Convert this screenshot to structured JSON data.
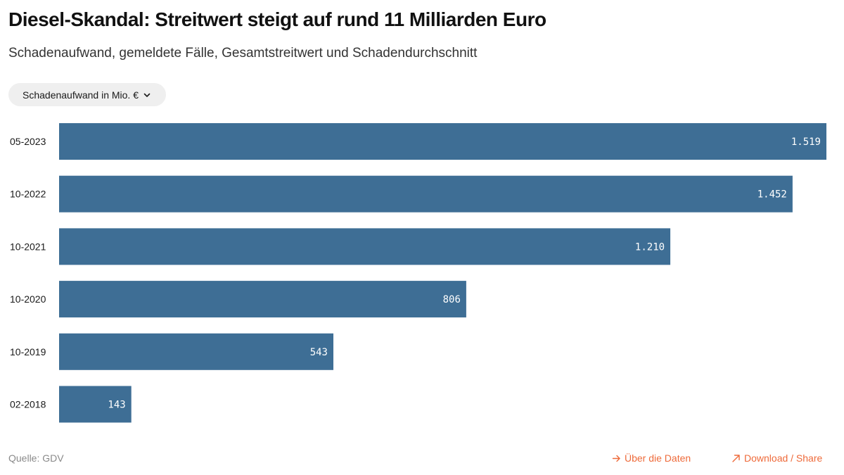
{
  "header": {
    "title": "Diesel-Skandal: Streitwert steigt auf rund 11 Milliarden Euro",
    "subtitle": "Schadenaufwand, gemeldete Fälle, Gesamtstreitwert und Schadendurchschnitt"
  },
  "selector": {
    "label": "Schadenaufwand in Mio. €",
    "icon": "chevron-down-icon"
  },
  "chart_data": {
    "type": "bar",
    "orientation": "horizontal",
    "categories": [
      "05-2023",
      "10-2022",
      "10-2021",
      "10-2020",
      "10-2019",
      "02-2018"
    ],
    "values": [
      1519,
      1452,
      1210,
      806,
      543,
      143
    ],
    "value_labels": [
      "1.519",
      "1.452",
      "1.210",
      "806",
      "543",
      "143"
    ],
    "xlim": [
      0,
      1519
    ],
    "grid": false,
    "bar_color": "#3e6e95",
    "label_color": "#ffffff"
  },
  "footer": {
    "source": "Quelle: GDV",
    "data_link": "Über die Daten",
    "data_link_icon": "arrow-right-icon",
    "share_link": "Download / Share",
    "share_link_icon": "arrow-up-right-icon",
    "link_color": "#ee6a3a"
  }
}
